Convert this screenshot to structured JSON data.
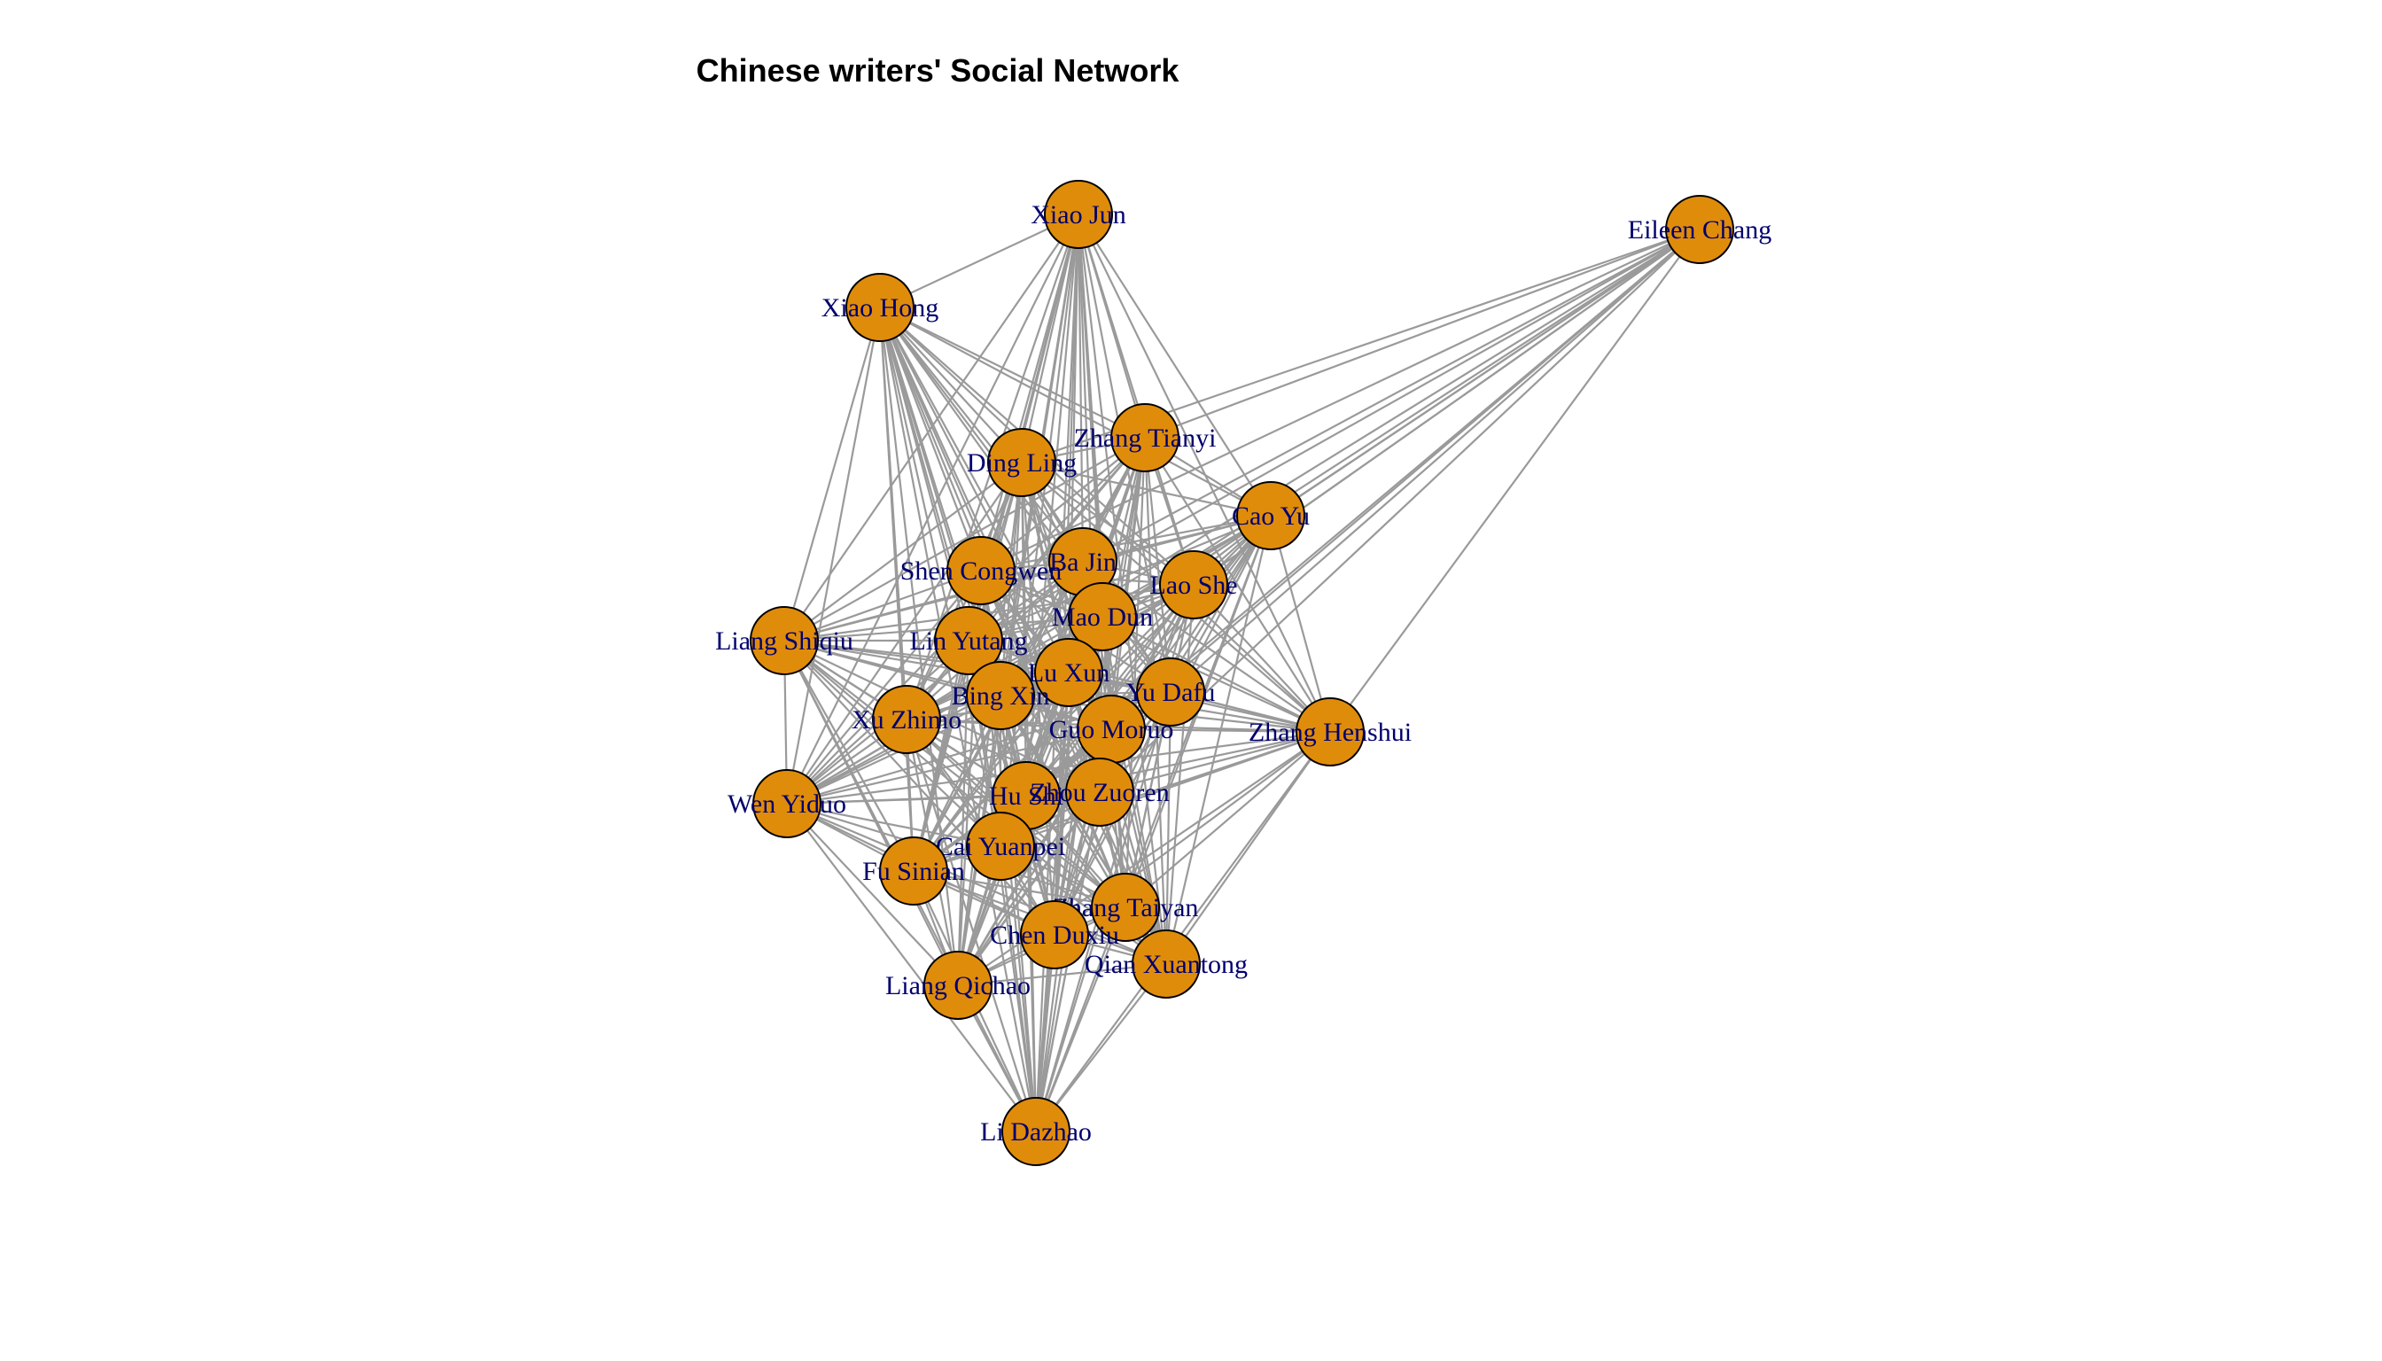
{
  "title": "Chinese writers' Social Network",
  "colors": {
    "node_fill": "#e08c0b",
    "node_stroke": "#000000",
    "edge": "#9a9a9a",
    "label": "#00006e",
    "title": "#000000"
  },
  "nodes": [
    {
      "id": "xiao-jun",
      "label": "Xiao Jun"
    },
    {
      "id": "eileen-chang",
      "label": "Eileen Chang"
    },
    {
      "id": "xiao-hong",
      "label": "Xiao Hong"
    },
    {
      "id": "zhang-tianyi",
      "label": "Zhang Tianyi"
    },
    {
      "id": "ding-ling",
      "label": "Ding Ling"
    },
    {
      "id": "cao-yu",
      "label": "Cao Yu"
    },
    {
      "id": "ba-jin",
      "label": "Ba Jin"
    },
    {
      "id": "shen-congwen",
      "label": "Shen Congwen"
    },
    {
      "id": "lao-she",
      "label": "Lao She"
    },
    {
      "id": "mao-dun",
      "label": "Mao Dun"
    },
    {
      "id": "liang-shiqiu",
      "label": "Liang Shiqiu"
    },
    {
      "id": "lin-yutang",
      "label": "Lin Yutang"
    },
    {
      "id": "lu-xun",
      "label": "Lu Xun"
    },
    {
      "id": "bing-xin",
      "label": "Bing Xin"
    },
    {
      "id": "yu-dafu",
      "label": "Yu Dafu"
    },
    {
      "id": "xu-zhimo",
      "label": "Xu Zhimo"
    },
    {
      "id": "guo-moruo",
      "label": "Guo Moruo"
    },
    {
      "id": "zhang-henshui",
      "label": "Zhang Henshui"
    },
    {
      "id": "wen-yiduo",
      "label": "Wen Yiduo"
    },
    {
      "id": "hu-shi",
      "label": "Hu Shi"
    },
    {
      "id": "zhou-zuoren",
      "label": "Zhou Zuoren"
    },
    {
      "id": "cai-yuanpei",
      "label": "Cai Yuanpei"
    },
    {
      "id": "fu-sinian",
      "label": "Fu Sinian"
    },
    {
      "id": "zhang-taiyan",
      "label": "Zhang Taiyan"
    },
    {
      "id": "chen-duxiu",
      "label": "Chen Duxiu"
    },
    {
      "id": "qian-xuantong",
      "label": "Qian Xuantong"
    },
    {
      "id": "liang-qichao",
      "label": "Liang Qichao"
    },
    {
      "id": "li-dazhao",
      "label": "Li Dazhao"
    }
  ]
}
